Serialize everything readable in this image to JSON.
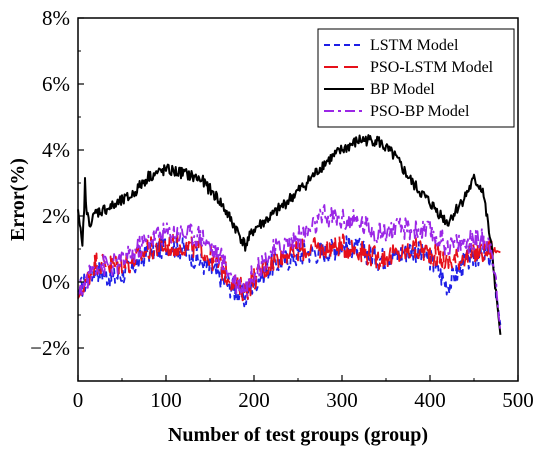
{
  "chart_data": {
    "type": "line",
    "title": "",
    "xlabel": "Number of test groups (group)",
    "ylabel": "Error(%)",
    "xlim": [
      0,
      500
    ],
    "ylim": [
      -3,
      8
    ],
    "x_ticks": [
      0,
      100,
      200,
      300,
      400,
      500
    ],
    "x_tick_labels": [
      "0",
      "100",
      "200",
      "300",
      "400",
      "500"
    ],
    "y_ticks": [
      -2,
      0,
      2,
      4,
      6,
      8
    ],
    "y_tick_labels": [
      "−2%",
      "0%",
      "2%",
      "4%",
      "6%",
      "8%"
    ],
    "grid": false,
    "legend_position": "top-right",
    "series": [
      {
        "name": "LSTM Model",
        "color": "#1f1fe6",
        "dash": "dashed",
        "x": [
          0,
          20,
          40,
          60,
          80,
          100,
          120,
          140,
          160,
          180,
          190,
          200,
          220,
          240,
          260,
          280,
          300,
          320,
          340,
          360,
          380,
          400,
          420,
          440,
          460,
          470,
          480
        ],
        "y": [
          -0.3,
          0.4,
          0.1,
          0.4,
          0.9,
          1.1,
          1.0,
          0.6,
          0.2,
          -0.3,
          -0.5,
          0.0,
          0.5,
          0.7,
          0.9,
          0.9,
          1.1,
          1.0,
          0.7,
          0.8,
          1.0,
          0.7,
          -0.1,
          0.6,
          0.9,
          0.7,
          -1.3
        ]
      },
      {
        "name": "PSO-LSTM Model",
        "color": "#e6101a",
        "dash": "longdash",
        "x": [
          0,
          20,
          40,
          60,
          80,
          100,
          120,
          140,
          160,
          180,
          190,
          200,
          220,
          240,
          260,
          280,
          300,
          320,
          340,
          360,
          380,
          400,
          420,
          440,
          460,
          470,
          480
        ],
        "y": [
          -0.5,
          0.6,
          0.5,
          0.6,
          1.0,
          1.1,
          1.1,
          1.0,
          0.5,
          -0.1,
          -0.3,
          0.1,
          0.6,
          0.9,
          1.0,
          1.0,
          1.1,
          1.0,
          0.7,
          0.8,
          1.0,
          0.9,
          0.6,
          0.8,
          0.9,
          1.0,
          0.9
        ]
      },
      {
        "name": "BP Model",
        "color": "#000000",
        "dash": "solid",
        "x": [
          0,
          5,
          8,
          10,
          15,
          20,
          40,
          60,
          80,
          100,
          120,
          140,
          160,
          180,
          190,
          200,
          220,
          240,
          260,
          280,
          300,
          320,
          340,
          360,
          380,
          400,
          420,
          440,
          450,
          460,
          470,
          480
        ],
        "y": [
          2.2,
          1.0,
          3.0,
          2.0,
          1.8,
          2.1,
          2.3,
          2.6,
          3.2,
          3.4,
          3.3,
          3.1,
          2.5,
          1.6,
          1.1,
          1.6,
          2.0,
          2.5,
          3.0,
          3.6,
          4.0,
          4.3,
          4.3,
          3.8,
          3.0,
          2.4,
          1.8,
          2.6,
          3.1,
          2.8,
          1.0,
          -1.6
        ]
      },
      {
        "name": "PSO-BP Model",
        "color": "#9b27e6",
        "dash": "dashdot",
        "x": [
          0,
          20,
          40,
          60,
          80,
          100,
          120,
          140,
          160,
          180,
          190,
          200,
          220,
          240,
          260,
          280,
          300,
          320,
          340,
          360,
          380,
          400,
          420,
          440,
          460,
          470,
          480
        ],
        "y": [
          -0.4,
          0.5,
          0.5,
          0.8,
          1.3,
          1.5,
          1.5,
          1.4,
          0.8,
          0.0,
          -0.2,
          0.3,
          0.9,
          1.2,
          1.5,
          2.0,
          1.9,
          1.8,
          1.5,
          1.6,
          1.6,
          1.5,
          1.1,
          1.2,
          1.3,
          1.2,
          -1.5
        ]
      }
    ]
  }
}
